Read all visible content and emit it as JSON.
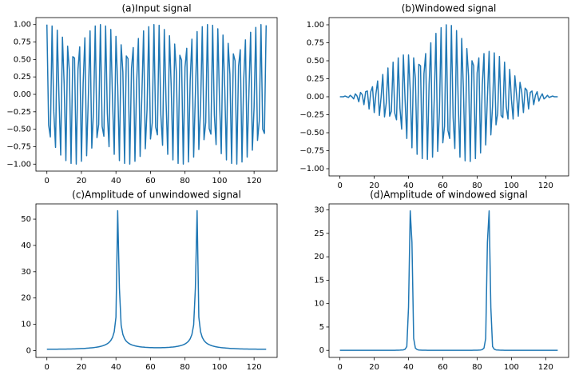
{
  "chart_data": [
    {
      "type": "line",
      "title": "(a)Input signal",
      "color": "#1f77b4",
      "x": [
        0,
        1,
        2,
        3,
        4,
        5,
        6,
        7,
        8,
        9,
        10,
        11,
        12,
        13,
        14,
        15,
        16,
        17,
        18,
        19,
        20,
        21,
        22,
        23,
        24,
        25,
        26,
        27,
        28,
        29,
        30,
        31,
        32,
        33,
        34,
        35,
        36,
        37,
        38,
        39,
        40,
        41,
        42,
        43,
        44,
        45,
        46,
        47,
        48,
        49,
        50,
        51,
        52,
        53,
        54,
        55,
        56,
        57,
        58,
        59,
        60,
        61,
        62,
        63,
        64,
        65,
        66,
        67,
        68,
        69,
        70,
        71,
        72,
        73,
        74,
        75,
        76,
        77,
        78,
        79,
        80,
        81,
        82,
        83,
        84,
        85,
        86,
        87,
        88,
        89,
        90,
        91,
        92,
        93,
        94,
        95,
        96,
        97,
        98,
        99,
        100,
        101,
        102,
        103,
        104,
        105,
        106,
        107,
        108,
        109,
        110,
        111,
        112,
        113,
        114,
        115,
        116,
        117,
        118,
        119,
        120,
        121,
        122,
        123,
        124,
        125,
        126,
        127
      ],
      "values": [
        1.0,
        -0.44,
        -0.61,
        0.98,
        -0.25,
        -0.76,
        0.92,
        -0.05,
        -0.87,
        0.82,
        0.15,
        -0.95,
        0.69,
        0.34,
        -0.99,
        0.54,
        0.52,
        -1.0,
        0.36,
        0.68,
        -0.96,
        0.16,
        0.81,
        -0.88,
        -0.04,
        0.91,
        -0.77,
        -0.24,
        0.98,
        -0.62,
        -0.43,
        1.0,
        -0.46,
        -0.6,
        0.98,
        -0.27,
        -0.75,
        0.93,
        -0.07,
        -0.86,
        0.83,
        0.13,
        -0.95,
        0.71,
        0.32,
        -0.99,
        0.55,
        0.51,
        -1.0,
        0.37,
        0.67,
        -0.96,
        0.18,
        0.8,
        -0.89,
        -0.02,
        0.91,
        -0.78,
        -0.22,
        0.97,
        -0.64,
        -0.41,
        1.0,
        -0.47,
        -0.58,
        0.99,
        -0.29,
        -0.73,
        0.93,
        -0.09,
        -0.86,
        0.84,
        0.11,
        -0.94,
        0.72,
        0.31,
        -0.99,
        0.56,
        0.49,
        -1.0,
        0.39,
        0.66,
        -0.97,
        0.2,
        0.79,
        -0.9,
        0.0,
        0.9,
        -0.79,
        -0.2,
        0.97,
        -0.65,
        -0.4,
        1.0,
        -0.49,
        -0.57,
        0.99,
        -0.3,
        -0.72,
        0.94,
        -0.1,
        -0.85,
        0.85,
        0.1,
        -0.94,
        0.73,
        0.29,
        -0.99,
        0.58,
        0.48,
        -1.0,
        0.4,
        0.64,
        -0.97,
        0.21,
        0.78,
        -0.9,
        0.01,
        0.89,
        -0.8,
        -0.19,
        0.96,
        -0.66,
        -0.38,
        1.0,
        -0.5,
        -0.56,
        0.99
      ],
      "xlim": [
        -6.35,
        133.35
      ],
      "xticks": [
        0,
        20,
        40,
        60,
        80,
        100,
        120
      ],
      "ylim": [
        -1.1,
        1.1
      ],
      "yticks": [
        {
          "value": -1,
          "label": "−1.00"
        },
        {
          "value": -0.75,
          "label": "−0.75"
        },
        {
          "value": -0.5,
          "label": "−0.50"
        },
        {
          "value": -0.25,
          "label": "−0.25"
        },
        {
          "value": 0,
          "label": "0.00"
        },
        {
          "value": 0.25,
          "label": "0.25"
        },
        {
          "value": 0.5,
          "label": "0.50"
        },
        {
          "value": 0.75,
          "label": "0.75"
        },
        {
          "value": 1,
          "label": "1.00"
        }
      ]
    },
    {
      "type": "line",
      "title": "(b)Windowed signal",
      "color": "#1f77b4",
      "x": [
        0,
        1,
        2,
        3,
        4,
        5,
        6,
        7,
        8,
        9,
        10,
        11,
        12,
        13,
        14,
        15,
        16,
        17,
        18,
        19,
        20,
        21,
        22,
        23,
        24,
        25,
        26,
        27,
        28,
        29,
        30,
        31,
        32,
        33,
        34,
        35,
        36,
        37,
        38,
        39,
        40,
        41,
        42,
        43,
        44,
        45,
        46,
        47,
        48,
        49,
        50,
        51,
        52,
        53,
        54,
        55,
        56,
        57,
        58,
        59,
        60,
        61,
        62,
        63,
        64,
        65,
        66,
        67,
        68,
        69,
        70,
        71,
        72,
        73,
        74,
        75,
        76,
        77,
        78,
        79,
        80,
        81,
        82,
        83,
        84,
        85,
        86,
        87,
        88,
        89,
        90,
        91,
        92,
        93,
        94,
        95,
        96,
        97,
        98,
        99,
        100,
        101,
        102,
        103,
        104,
        105,
        106,
        107,
        108,
        109,
        110,
        111,
        112,
        113,
        114,
        115,
        116,
        117,
        118,
        119,
        120,
        121,
        122,
        123,
        124,
        125,
        126,
        127
      ],
      "values": [
        0,
        0,
        0,
        0.01,
        0,
        -0.01,
        0.02,
        0,
        -0.03,
        0.04,
        0.01,
        -0.07,
        0.06,
        0.03,
        -0.11,
        0.07,
        0.08,
        -0.17,
        0.07,
        0.14,
        -0.22,
        0.04,
        0.22,
        -0.26,
        -0.01,
        0.31,
        -0.28,
        -0.09,
        0.4,
        -0.27,
        -0.2,
        0.48,
        -0.23,
        -0.32,
        0.54,
        -0.16,
        -0.45,
        0.58,
        -0.05,
        -0.58,
        0.58,
        0.09,
        -0.71,
        0.54,
        0.25,
        -0.8,
        0.45,
        0.43,
        -0.86,
        0.32,
        0.6,
        -0.87,
        0.17,
        0.75,
        -0.84,
        -0.02,
        0.88,
        -0.76,
        -0.22,
        0.96,
        -0.64,
        -0.41,
        1.0,
        -0.47,
        -0.58,
        0.99,
        -0.29,
        -0.72,
        0.92,
        -0.09,
        -0.84,
        0.81,
        0.11,
        -0.89,
        0.67,
        0.29,
        -0.9,
        0.5,
        0.43,
        -0.86,
        0.33,
        0.54,
        -0.78,
        0.16,
        0.6,
        -0.67,
        0,
        0.63,
        -0.53,
        -0.13,
        0.61,
        -0.39,
        -0.23,
        0.56,
        -0.26,
        -0.29,
        0.48,
        -0.14,
        -0.31,
        0.38,
        -0.04,
        -0.31,
        0.29,
        0.03,
        -0.27,
        0.2,
        0.07,
        -0.22,
        0.12,
        0.09,
        -0.17,
        0.06,
        0.08,
        -0.11,
        0.02,
        0.07,
        -0.06,
        0,
        0.04,
        -0.03,
        -0.01,
        0.02,
        -0.01,
        0,
        0.01,
        0,
        0,
        0
      ],
      "xlim": [
        -6.35,
        133.35
      ],
      "xticks": [
        0,
        20,
        40,
        60,
        80,
        100,
        120
      ],
      "ylim": [
        -1.1,
        1.1
      ],
      "yticks": [
        {
          "value": -1,
          "label": "−1.00"
        },
        {
          "value": -0.75,
          "label": "−0.75"
        },
        {
          "value": -0.5,
          "label": "−0.50"
        },
        {
          "value": -0.25,
          "label": "−0.25"
        },
        {
          "value": 0,
          "label": "0.00"
        },
        {
          "value": 0.25,
          "label": "0.25"
        },
        {
          "value": 0.5,
          "label": "0.50"
        },
        {
          "value": 0.75,
          "label": "0.75"
        },
        {
          "value": 1,
          "label": "1.00"
        }
      ]
    },
    {
      "type": "line",
      "title": "(c)Amplitude of unwindowed signal",
      "color": "#1f77b4",
      "x": [
        0,
        1,
        2,
        3,
        4,
        5,
        6,
        7,
        8,
        9,
        10,
        11,
        12,
        13,
        14,
        15,
        16,
        17,
        18,
        19,
        20,
        21,
        22,
        23,
        24,
        25,
        26,
        27,
        28,
        29,
        30,
        31,
        32,
        33,
        34,
        35,
        36,
        37,
        38,
        39,
        40,
        41,
        42,
        43,
        44,
        45,
        46,
        47,
        48,
        49,
        50,
        51,
        52,
        53,
        54,
        55,
        56,
        57,
        58,
        59,
        60,
        61,
        62,
        63,
        64,
        65,
        66,
        67,
        68,
        69,
        70,
        71,
        72,
        73,
        74,
        75,
        76,
        77,
        78,
        79,
        80,
        81,
        82,
        83,
        84,
        85,
        86,
        87,
        88,
        89,
        90,
        91,
        92,
        93,
        94,
        95,
        96,
        97,
        98,
        99,
        100,
        101,
        102,
        103,
        104,
        105,
        106,
        107,
        108,
        109,
        110,
        111,
        112,
        113,
        114,
        115,
        116,
        117,
        118,
        119,
        120,
        121,
        122,
        123,
        124,
        125,
        126,
        127
      ],
      "values": [
        0.51,
        0.52,
        0.52,
        0.52,
        0.51,
        0.52,
        0.53,
        0.54,
        0.55,
        0.55,
        0.56,
        0.57,
        0.59,
        0.6,
        0.61,
        0.63,
        0.65,
        0.68,
        0.7,
        0.73,
        0.77,
        0.8,
        0.84,
        0.89,
        0.94,
        1.0,
        1.06,
        1.13,
        1.22,
        1.32,
        1.44,
        1.58,
        1.76,
        1.97,
        2.24,
        2.6,
        3.09,
        3.83,
        4.99,
        7.17,
        12.7,
        53.2,
        23.71,
        9.72,
        6.14,
        4.5,
        3.55,
        2.95,
        2.52,
        2.21,
        1.98,
        1.8,
        1.65,
        1.54,
        1.44,
        1.36,
        1.3,
        1.24,
        1.2,
        1.16,
        1.12,
        1.11,
        1.09,
        1.09,
        1.09,
        1.09,
        1.09,
        1.11,
        1.12,
        1.16,
        1.2,
        1.24,
        1.3,
        1.36,
        1.44,
        1.54,
        1.65,
        1.8,
        1.98,
        2.21,
        2.52,
        2.95,
        3.55,
        4.5,
        6.14,
        9.72,
        23.71,
        53.2,
        12.7,
        7.17,
        4.99,
        3.83,
        3.09,
        2.6,
        2.24,
        1.97,
        1.76,
        1.58,
        1.44,
        1.32,
        1.22,
        1.13,
        1.06,
        1.0,
        0.94,
        0.89,
        0.84,
        0.8,
        0.77,
        0.73,
        0.7,
        0.68,
        0.65,
        0.63,
        0.61,
        0.6,
        0.59,
        0.57,
        0.56,
        0.55,
        0.55,
        0.54,
        0.53,
        0.52,
        0.51,
        0.52,
        0.52,
        0.52
      ],
      "xlim": [
        -6.35,
        133.35
      ],
      "xticks": [
        0,
        20,
        40,
        60,
        80,
        100,
        120
      ],
      "ylim": [
        -2.6,
        55.8
      ],
      "yticks": [
        0,
        10,
        20,
        30,
        40,
        50
      ]
    },
    {
      "type": "line",
      "title": "(d)Amplitude of windowed signal",
      "color": "#1f77b4",
      "x": [
        0,
        1,
        2,
        3,
        4,
        5,
        6,
        7,
        8,
        9,
        10,
        11,
        12,
        13,
        14,
        15,
        16,
        17,
        18,
        19,
        20,
        21,
        22,
        23,
        24,
        25,
        26,
        27,
        28,
        29,
        30,
        31,
        32,
        33,
        34,
        35,
        36,
        37,
        38,
        39,
        40,
        41,
        42,
        43,
        44,
        45,
        46,
        47,
        48,
        49,
        50,
        51,
        52,
        53,
        54,
        55,
        56,
        57,
        58,
        59,
        60,
        61,
        62,
        63,
        64,
        65,
        66,
        67,
        68,
        69,
        70,
        71,
        72,
        73,
        74,
        75,
        76,
        77,
        78,
        79,
        80,
        81,
        82,
        83,
        84,
        85,
        86,
        87,
        88,
        89,
        90,
        91,
        92,
        93,
        94,
        95,
        96,
        97,
        98,
        99,
        100,
        101,
        102,
        103,
        104,
        105,
        106,
        107,
        108,
        109,
        110,
        111,
        112,
        113,
        114,
        115,
        116,
        117,
        118,
        119,
        120,
        121,
        122,
        123,
        124,
        125,
        126,
        127
      ],
      "values": [
        0.01,
        0.01,
        0.01,
        0.01,
        0.01,
        0.01,
        0.01,
        0.01,
        0.01,
        0.01,
        0.01,
        0.01,
        0.01,
        0.01,
        0.01,
        0.01,
        0.01,
        0.01,
        0.01,
        0.01,
        0.01,
        0.01,
        0.01,
        0.01,
        0.01,
        0.01,
        0.01,
        0.01,
        0.01,
        0.01,
        0.01,
        0.02,
        0.02,
        0.03,
        0.04,
        0.05,
        0.07,
        0.11,
        0.25,
        0.83,
        9.2,
        29.8,
        23.1,
        2.56,
        0.49,
        0.18,
        0.08,
        0.06,
        0.04,
        0.03,
        0.03,
        0.02,
        0.02,
        0.02,
        0.02,
        0.01,
        0.01,
        0.01,
        0.01,
        0.01,
        0.01,
        0.01,
        0.01,
        0.01,
        0.01,
        0.01,
        0.01,
        0.01,
        0.01,
        0.01,
        0.01,
        0.01,
        0.01,
        0.01,
        0.02,
        0.02,
        0.02,
        0.02,
        0.03,
        0.03,
        0.04,
        0.06,
        0.08,
        0.18,
        0.49,
        2.56,
        23.1,
        29.8,
        9.2,
        0.83,
        0.25,
        0.11,
        0.07,
        0.05,
        0.04,
        0.03,
        0.02,
        0.02,
        0.01,
        0.01,
        0.01,
        0.01,
        0.01,
        0.01,
        0.01,
        0.01,
        0.01,
        0.01,
        0.01,
        0.01,
        0.01,
        0.01,
        0.01,
        0.01,
        0.01,
        0.01,
        0.01,
        0.01,
        0.01,
        0.01,
        0.01,
        0.01,
        0.01,
        0.01,
        0.01,
        0.01,
        0.01,
        0.01
      ],
      "xlim": [
        -6.35,
        133.35
      ],
      "xticks": [
        0,
        20,
        40,
        60,
        80,
        100,
        120
      ],
      "ylim": [
        -1.5,
        31.3
      ],
      "yticks": [
        0,
        5,
        10,
        15,
        20,
        25,
        30
      ]
    }
  ]
}
